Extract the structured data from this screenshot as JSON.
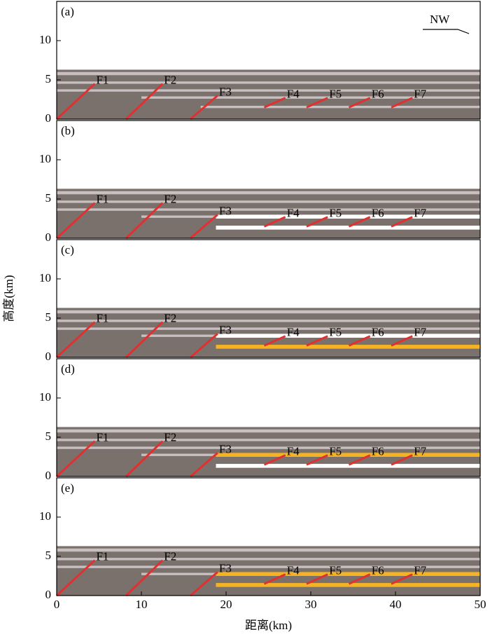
{
  "chart_data": [
    {
      "type": "section",
      "label": "(a)",
      "annotation": "NW",
      "xlim": [
        0,
        50
      ],
      "ylim": [
        0,
        15
      ],
      "yticks": [
        0,
        5,
        10
      ],
      "bands": [
        {
          "x": [
            0,
            50
          ],
          "y": [
            0,
            6.3
          ],
          "color": "#7a716d"
        },
        {
          "x": [
            0,
            50
          ],
          "y": [
            5.6,
            6.0
          ],
          "color": "#c8c0c0"
        },
        {
          "x": [
            0,
            50
          ],
          "y": [
            4.5,
            4.8
          ],
          "color": "#c8c0c0"
        },
        {
          "x": [
            0,
            50
          ],
          "y": [
            3.5,
            3.8
          ],
          "color": "#c8c0c0"
        },
        {
          "x": [
            10,
            50
          ],
          "y": [
            2.6,
            2.9
          ],
          "color": "#c8c0c0"
        },
        {
          "x": [
            17,
            50
          ],
          "y": [
            1.4,
            1.7
          ],
          "color": "#c8c0c0"
        }
      ],
      "fault_color": "#e03030",
      "faults": [
        {
          "name": "F1",
          "x": [
            0,
            4.5
          ],
          "y": [
            0,
            4.5
          ]
        },
        {
          "name": "F2",
          "x": [
            8.2,
            12.5
          ],
          "y": [
            0,
            4.5
          ]
        },
        {
          "name": "F3",
          "x": [
            15.8,
            19
          ],
          "y": [
            0,
            3
          ]
        },
        {
          "name": "F4",
          "x": [
            24.5,
            27
          ],
          "y": [
            1.5,
            2.7
          ]
        },
        {
          "name": "F5",
          "x": [
            29.5,
            32
          ],
          "y": [
            1.5,
            2.7
          ]
        },
        {
          "name": "F6",
          "x": [
            34.5,
            37
          ],
          "y": [
            1.5,
            2.7
          ]
        },
        {
          "name": "F7",
          "x": [
            39.5,
            42
          ],
          "y": [
            1.5,
            2.7
          ]
        }
      ]
    },
    {
      "type": "section",
      "label": "(b)",
      "xlim": [
        0,
        50
      ],
      "ylim": [
        0,
        15
      ],
      "yticks": [
        0,
        5,
        10
      ],
      "bands": [
        {
          "x": [
            0,
            50
          ],
          "y": [
            0,
            6.3
          ],
          "color": "#7a716d"
        },
        {
          "x": [
            0,
            50
          ],
          "y": [
            5.6,
            6.0
          ],
          "color": "#c8c0c0"
        },
        {
          "x": [
            0,
            50
          ],
          "y": [
            4.5,
            4.8
          ],
          "color": "#c8c0c0"
        },
        {
          "x": [
            0,
            50
          ],
          "y": [
            3.5,
            3.8
          ],
          "color": "#c8c0c0"
        },
        {
          "x": [
            10,
            50
          ],
          "y": [
            2.6,
            2.9
          ],
          "color": "#c8c0c0"
        },
        {
          "x": [
            18.8,
            50
          ],
          "y": [
            2.5,
            3.0
          ],
          "color": "#ffffff"
        },
        {
          "x": [
            18.8,
            50
          ],
          "y": [
            1.1,
            1.6
          ],
          "color": "#ffffff"
        }
      ],
      "fault_color": "#e03030",
      "faults": [
        {
          "name": "F1",
          "x": [
            0,
            4.5
          ],
          "y": [
            0,
            4.5
          ]
        },
        {
          "name": "F2",
          "x": [
            8.2,
            12.5
          ],
          "y": [
            0,
            4.5
          ]
        },
        {
          "name": "F3",
          "x": [
            15.8,
            19
          ],
          "y": [
            0,
            3
          ]
        },
        {
          "name": "F4",
          "x": [
            24.5,
            27
          ],
          "y": [
            1.5,
            2.7
          ]
        },
        {
          "name": "F5",
          "x": [
            29.5,
            32
          ],
          "y": [
            1.5,
            2.7
          ]
        },
        {
          "name": "F6",
          "x": [
            34.5,
            37
          ],
          "y": [
            1.5,
            2.7
          ]
        },
        {
          "name": "F7",
          "x": [
            39.5,
            42
          ],
          "y": [
            1.5,
            2.7
          ]
        }
      ]
    },
    {
      "type": "section",
      "label": "(c)",
      "ylabel": "高度(km)",
      "xlim": [
        0,
        50
      ],
      "ylim": [
        0,
        15
      ],
      "yticks": [
        0,
        5,
        10
      ],
      "bands": [
        {
          "x": [
            0,
            50
          ],
          "y": [
            0,
            6.3
          ],
          "color": "#7a716d"
        },
        {
          "x": [
            0,
            50
          ],
          "y": [
            5.6,
            6.0
          ],
          "color": "#c8c0c0"
        },
        {
          "x": [
            0,
            50
          ],
          "y": [
            4.5,
            4.8
          ],
          "color": "#c8c0c0"
        },
        {
          "x": [
            0,
            50
          ],
          "y": [
            3.5,
            3.8
          ],
          "color": "#c8c0c0"
        },
        {
          "x": [
            10,
            50
          ],
          "y": [
            2.6,
            2.9
          ],
          "color": "#c8c0c0"
        },
        {
          "x": [
            18.8,
            50
          ],
          "y": [
            2.5,
            3.0
          ],
          "color": "#ffffff"
        },
        {
          "x": [
            18.8,
            50
          ],
          "y": [
            1.1,
            1.6
          ],
          "color": "#f5b324"
        }
      ],
      "fault_color": "#e03030",
      "faults": [
        {
          "name": "F1",
          "x": [
            0,
            4.5
          ],
          "y": [
            0,
            4.5
          ]
        },
        {
          "name": "F2",
          "x": [
            8.2,
            12.5
          ],
          "y": [
            0,
            4.5
          ]
        },
        {
          "name": "F3",
          "x": [
            15.8,
            19
          ],
          "y": [
            0,
            3
          ]
        },
        {
          "name": "F4",
          "x": [
            24.5,
            27
          ],
          "y": [
            1.5,
            2.7
          ]
        },
        {
          "name": "F5",
          "x": [
            29.5,
            32
          ],
          "y": [
            1.5,
            2.7
          ]
        },
        {
          "name": "F6",
          "x": [
            34.5,
            37
          ],
          "y": [
            1.5,
            2.7
          ]
        },
        {
          "name": "F7",
          "x": [
            39.5,
            42
          ],
          "y": [
            1.5,
            2.7
          ]
        }
      ]
    },
    {
      "type": "section",
      "label": "(d)",
      "xlim": [
        0,
        50
      ],
      "ylim": [
        0,
        15
      ],
      "yticks": [
        0,
        5,
        10
      ],
      "bands": [
        {
          "x": [
            0,
            50
          ],
          "y": [
            0,
            6.3
          ],
          "color": "#7a716d"
        },
        {
          "x": [
            0,
            50
          ],
          "y": [
            5.6,
            6.0
          ],
          "color": "#c8c0c0"
        },
        {
          "x": [
            0,
            50
          ],
          "y": [
            4.5,
            4.8
          ],
          "color": "#c8c0c0"
        },
        {
          "x": [
            0,
            50
          ],
          "y": [
            3.5,
            3.8
          ],
          "color": "#c8c0c0"
        },
        {
          "x": [
            10,
            50
          ],
          "y": [
            2.6,
            2.9
          ],
          "color": "#c8c0c0"
        },
        {
          "x": [
            18.8,
            50
          ],
          "y": [
            2.5,
            3.0
          ],
          "color": "#f5b324"
        },
        {
          "x": [
            18.8,
            50
          ],
          "y": [
            1.1,
            1.6
          ],
          "color": "#ffffff"
        }
      ],
      "fault_color": "#e03030",
      "faults": [
        {
          "name": "F1",
          "x": [
            0,
            4.5
          ],
          "y": [
            0,
            4.5
          ]
        },
        {
          "name": "F2",
          "x": [
            8.2,
            12.5
          ],
          "y": [
            0,
            4.5
          ]
        },
        {
          "name": "F3",
          "x": [
            15.8,
            19
          ],
          "y": [
            0,
            3
          ]
        },
        {
          "name": "F4",
          "x": [
            24.5,
            27
          ],
          "y": [
            1.5,
            2.7
          ]
        },
        {
          "name": "F5",
          "x": [
            29.5,
            32
          ],
          "y": [
            1.5,
            2.7
          ]
        },
        {
          "name": "F6",
          "x": [
            34.5,
            37
          ],
          "y": [
            1.5,
            2.7
          ]
        },
        {
          "name": "F7",
          "x": [
            39.5,
            42
          ],
          "y": [
            1.5,
            2.7
          ]
        }
      ]
    },
    {
      "type": "section",
      "label": "(e)",
      "xlabel": "距离(km)",
      "xlim": [
        0,
        50
      ],
      "ylim": [
        0,
        15
      ],
      "yticks": [
        0,
        5,
        10
      ],
      "xticks": [
        0,
        10,
        20,
        30,
        40,
        50
      ],
      "bands": [
        {
          "x": [
            0,
            50
          ],
          "y": [
            0,
            6.3
          ],
          "color": "#7a716d"
        },
        {
          "x": [
            0,
            50
          ],
          "y": [
            5.6,
            6.0
          ],
          "color": "#c8c0c0"
        },
        {
          "x": [
            0,
            50
          ],
          "y": [
            4.5,
            4.8
          ],
          "color": "#c8c0c0"
        },
        {
          "x": [
            0,
            50
          ],
          "y": [
            3.5,
            3.8
          ],
          "color": "#c8c0c0"
        },
        {
          "x": [
            10,
            50
          ],
          "y": [
            2.6,
            2.9
          ],
          "color": "#c8c0c0"
        },
        {
          "x": [
            18.8,
            50
          ],
          "y": [
            2.5,
            3.0
          ],
          "color": "#f5b324"
        },
        {
          "x": [
            18.8,
            50
          ],
          "y": [
            1.1,
            1.6
          ],
          "color": "#f5b324"
        }
      ],
      "fault_color": "#e03030",
      "faults": [
        {
          "name": "F1",
          "x": [
            0,
            4.5
          ],
          "y": [
            0,
            4.5
          ]
        },
        {
          "name": "F2",
          "x": [
            8.2,
            12.5
          ],
          "y": [
            0,
            4.5
          ]
        },
        {
          "name": "F3",
          "x": [
            15.8,
            19
          ],
          "y": [
            0,
            3
          ]
        },
        {
          "name": "F4",
          "x": [
            24.5,
            27
          ],
          "y": [
            1.5,
            2.7
          ]
        },
        {
          "name": "F5",
          "x": [
            29.5,
            32
          ],
          "y": [
            1.5,
            2.7
          ]
        },
        {
          "name": "F6",
          "x": [
            34.5,
            37
          ],
          "y": [
            1.5,
            2.7
          ]
        },
        {
          "name": "F7",
          "x": [
            39.5,
            42
          ],
          "y": [
            1.5,
            2.7
          ]
        }
      ]
    }
  ]
}
